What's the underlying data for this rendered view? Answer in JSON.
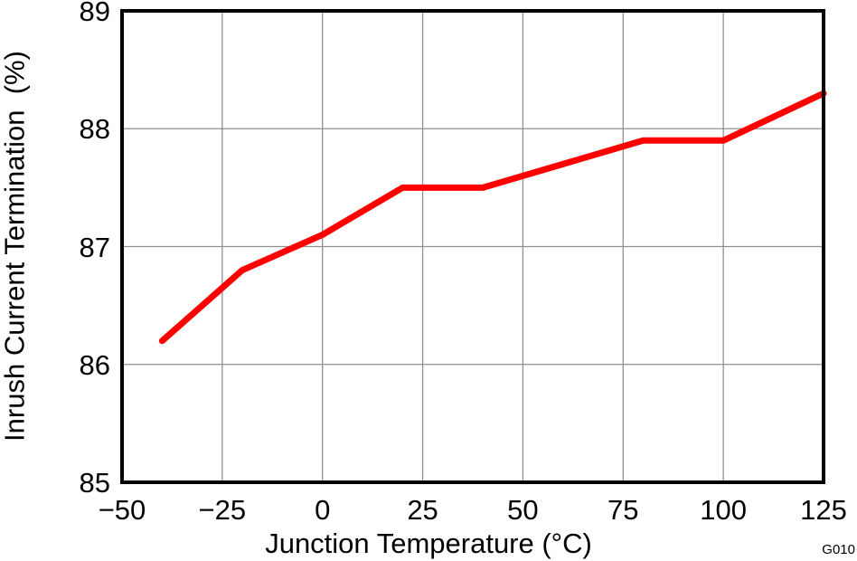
{
  "figure": {
    "watermark": "G010"
  },
  "chart_data": {
    "type": "line",
    "title": "",
    "xlabel": "Junction Temperature (°C)",
    "ylabel": "Inrush Current Termination  (%)",
    "xlim": [
      -50,
      125
    ],
    "ylim": [
      85,
      89
    ],
    "grid": true,
    "legend_position": "none",
    "xticks": {
      "values": [
        -50,
        -25,
        0,
        25,
        50,
        75,
        100,
        125
      ],
      "labels": [
        "−50",
        "−25",
        "0",
        "25",
        "50",
        "75",
        "100",
        "125"
      ]
    },
    "yticks": {
      "values": [
        85,
        86,
        87,
        88,
        89
      ],
      "labels": [
        "85",
        "86",
        "87",
        "88",
        "89"
      ]
    },
    "series": [
      {
        "name": "Inrush Current Termination",
        "color": "#FF0000",
        "x": [
          -40,
          -20,
          0,
          20,
          40,
          80,
          100,
          125
        ],
        "y": [
          86.2,
          86.8,
          87.1,
          87.5,
          87.5,
          87.9,
          87.9,
          88.3
        ]
      }
    ],
    "colors": {
      "grid": "#909090",
      "axis": "#000000",
      "background": "#FFFFFF"
    }
  }
}
